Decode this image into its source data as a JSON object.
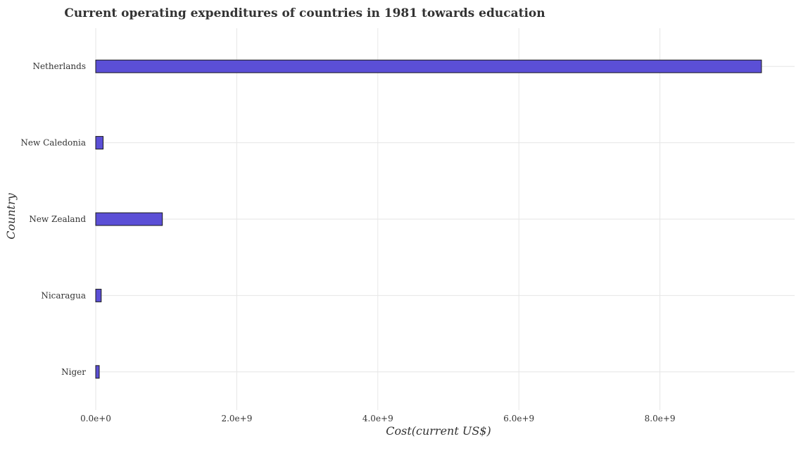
{
  "chart_data": {
    "type": "bar",
    "orientation": "horizontal",
    "title": "Current operating expenditures of countries in 1981 towards education",
    "xlabel": "Cost(current US$)",
    "ylabel": "Country",
    "categories": [
      "Netherlands",
      "New Caledonia",
      "New Zealand",
      "Nicaragua",
      "Niger"
    ],
    "values": [
      9440000000,
      105000000,
      945000000,
      78000000,
      50000000
    ],
    "xticks": [
      0,
      2000000000,
      4000000000,
      6000000000,
      8000000000
    ],
    "xtick_labels": [
      "0.0e+0",
      "2.0e+9",
      "4.0e+9",
      "6.0e+9",
      "8.0e+9"
    ],
    "xlim": [
      0,
      9910000000
    ],
    "grid": true,
    "bar_color": "#5b4fd6"
  }
}
